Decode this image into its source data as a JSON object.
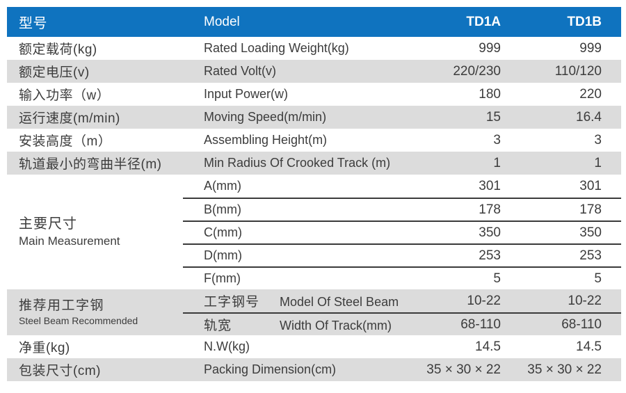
{
  "colors": {
    "header_bg": "#0f73bf",
    "stripe": "#dcdcdc",
    "text": "#3c3c3c",
    "line": "#3a3a3a"
  },
  "table": {
    "header": {
      "col1": "型号",
      "col2": "Model",
      "col3": "TD1A",
      "col4": "TD1B"
    },
    "rows": [
      {
        "cn": "额定载荷(kg)",
        "en": "Rated Loading Weight(kg)",
        "td1a": "999",
        "td1b": "999"
      },
      {
        "cn": "额定电压(v)",
        "en": "Rated Volt(v)",
        "td1a": "220/230",
        "td1b": "110/120"
      },
      {
        "cn": "输入功率（w）",
        "en": "Input Power(w)",
        "td1a": "180",
        "td1b": "220"
      },
      {
        "cn": "运行速度(m/min)",
        "en": "Moving Speed(m/min)",
        "td1a": "15",
        "td1b": "16.4"
      },
      {
        "cn": "安装高度（m）",
        "en": "Assembling Height(m)",
        "td1a": "3",
        "td1b": "3"
      },
      {
        "cn": "轨道最小的弯曲半径(m)",
        "en": "Min Radius Of Crooked Track (m)",
        "td1a": "1",
        "td1b": "1"
      }
    ],
    "main_measurement": {
      "cn": "主要尺寸",
      "en": "Main Measurement",
      "subrows": [
        {
          "label": "A(mm)",
          "td1a": "301",
          "td1b": "301"
        },
        {
          "label": "B(mm)",
          "td1a": "178",
          "td1b": "178"
        },
        {
          "label": "C(mm)",
          "td1a": "350",
          "td1b": "350"
        },
        {
          "label": "D(mm)",
          "td1a": "253",
          "td1b": "253"
        },
        {
          "label": "F(mm)",
          "td1a": "5",
          "td1b": "5"
        }
      ]
    },
    "steel_beam": {
      "cn": "推荐用工字钢",
      "en": "Steel Beam Recommended",
      "subrows": [
        {
          "cn": "工字钢号",
          "en": "Model Of Steel Beam",
          "td1a": "10-22",
          "td1b": "10-22"
        },
        {
          "cn": "轨宽",
          "en": "Width Of Track(mm)",
          "td1a": "68-110",
          "td1b": "68-110"
        }
      ]
    },
    "bottom_rows": [
      {
        "cn": "净重(kg)",
        "en": "N.W(kg)",
        "td1a": "14.5",
        "td1b": "14.5"
      },
      {
        "cn": "包装尺寸(cm)",
        "en": "Packing Dimension(cm)",
        "td1a": "35 × 30 × 22",
        "td1b": "35 × 30 × 22"
      }
    ]
  }
}
